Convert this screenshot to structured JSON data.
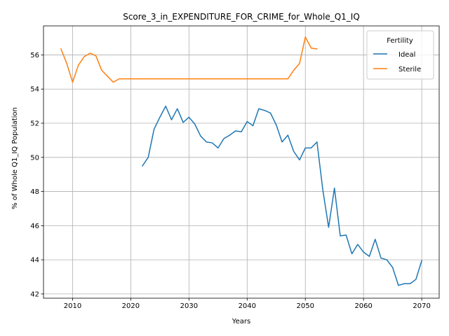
{
  "chart_data": {
    "type": "line",
    "title": "Score_3_in_EXPENDITURE_FOR_CRIME_for_Whole_Q1_IQ",
    "xlabel": "Years",
    "ylabel": "% of Whole Q1_IQ Population",
    "xlim": [
      2005,
      2073
    ],
    "ylim": [
      41.75,
      57.7
    ],
    "xticks": [
      2010,
      2020,
      2030,
      2040,
      2050,
      2060,
      2070
    ],
    "yticks": [
      42,
      44,
      46,
      48,
      50,
      52,
      54,
      56
    ],
    "grid": true,
    "legend": {
      "title": "Fertility",
      "placement": "top-right"
    },
    "colors": {
      "Ideal": "#1f77b4",
      "Sterile": "#ff7f0e"
    },
    "series": [
      {
        "name": "Sterile",
        "x": [
          2008,
          2009,
          2010,
          2011,
          2012,
          2013,
          2014,
          2015,
          2016,
          2017,
          2018,
          2019,
          2020,
          2021,
          2022,
          2023,
          2024,
          2025,
          2026,
          2027,
          2028,
          2029,
          2030,
          2031,
          2032,
          2033,
          2034,
          2035,
          2036,
          2037,
          2038,
          2039,
          2040,
          2041,
          2042,
          2043,
          2044,
          2045,
          2046,
          2047,
          2048,
          2049,
          2050,
          2051,
          2052
        ],
        "y": [
          56.35,
          55.5,
          54.4,
          55.4,
          55.9,
          56.1,
          55.95,
          55.1,
          54.75,
          54.4,
          54.6,
          54.6,
          54.6,
          54.6,
          54.6,
          54.6,
          54.6,
          54.6,
          54.6,
          54.6,
          54.6,
          54.6,
          54.6,
          54.6,
          54.6,
          54.6,
          54.6,
          54.6,
          54.6,
          54.6,
          54.6,
          54.6,
          54.6,
          54.6,
          54.6,
          54.6,
          54.6,
          54.6,
          54.6,
          54.6,
          55.1,
          55.5,
          57.05,
          56.4,
          56.35
        ]
      },
      {
        "name": "Ideal",
        "x": [
          2022,
          2023,
          2024,
          2025,
          2026,
          2027,
          2028,
          2029,
          2030,
          2031,
          2032,
          2033,
          2034,
          2035,
          2036,
          2037,
          2038,
          2039,
          2040,
          2041,
          2042,
          2043,
          2044,
          2045,
          2046,
          2047,
          2048,
          2049,
          2050,
          2051,
          2052,
          2053,
          2054,
          2055,
          2056,
          2057,
          2058,
          2059,
          2060,
          2061,
          2062,
          2063,
          2064,
          2065,
          2066,
          2067,
          2068,
          2069,
          2070
        ],
        "y": [
          49.5,
          50.0,
          51.65,
          52.35,
          53.0,
          52.2,
          52.85,
          52.05,
          52.35,
          51.95,
          51.25,
          50.9,
          50.85,
          50.55,
          51.1,
          51.3,
          51.55,
          51.5,
          52.1,
          51.85,
          52.85,
          52.75,
          52.6,
          51.9,
          50.9,
          51.3,
          50.35,
          49.85,
          50.55,
          50.55,
          50.9,
          48.1,
          45.9,
          48.2,
          45.4,
          45.45,
          44.35,
          44.9,
          44.45,
          44.2,
          45.2,
          44.1,
          44.0,
          43.55,
          42.5,
          42.6,
          42.6,
          42.85,
          43.95
        ]
      }
    ]
  }
}
